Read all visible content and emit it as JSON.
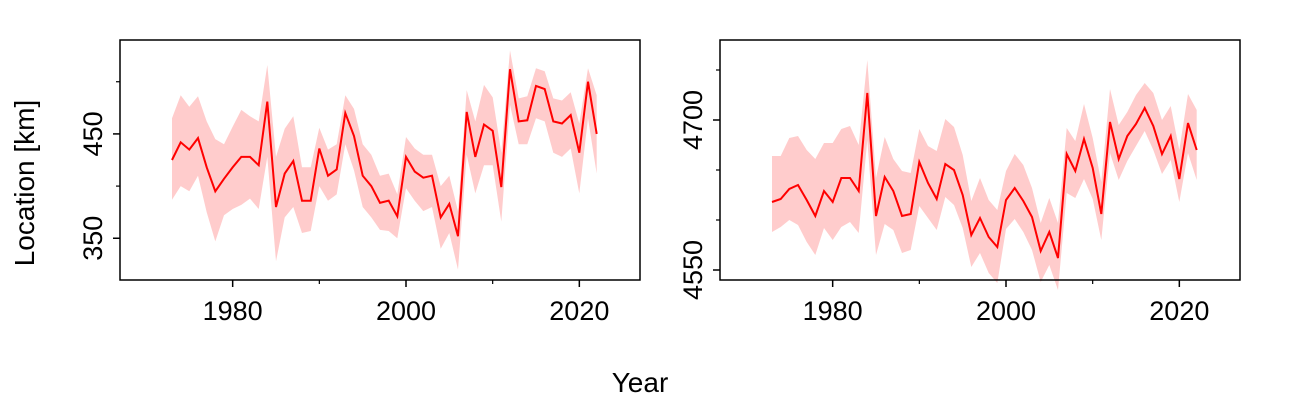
{
  "figure": {
    "ylabel": "Location [km]",
    "xlabel": "Year"
  },
  "chart_data": [
    {
      "type": "line",
      "title": "",
      "xlabel": "Year",
      "ylabel": "Location [km]",
      "xlim": [
        1967,
        2027
      ],
      "ylim": [
        310,
        540
      ],
      "xticks_major": [
        1980,
        2000,
        2020
      ],
      "xticks_minor": [
        1990,
        2010
      ],
      "yticks_major": [
        350,
        450
      ],
      "yticks_minor": [
        400,
        500
      ],
      "grid": false,
      "colors": {
        "line": "#ff0000",
        "band": "#ffcccc"
      },
      "series": [
        {
          "x": [
            1973,
            1974,
            1975,
            1976,
            1977,
            1978,
            1979,
            1980,
            1981,
            1982,
            1983,
            1984,
            1985,
            1986,
            1987,
            1988,
            1989,
            1990,
            1991,
            1992,
            1993,
            1994,
            1995,
            1996,
            1997,
            1998,
            1999,
            2000,
            2001,
            2002,
            2003,
            2004,
            2005,
            2006,
            2007,
            2008,
            2009,
            2010,
            2011,
            2012,
            2013,
            2014,
            2015,
            2016,
            2017,
            2018,
            2019,
            2020,
            2021,
            2022
          ],
          "y": [
            425,
            442,
            435,
            446,
            418,
            395,
            407,
            418,
            428,
            428,
            420,
            481,
            380,
            412,
            424,
            386,
            386,
            436,
            410,
            416,
            470,
            448,
            410,
            400,
            384,
            386,
            371,
            428,
            414,
            408,
            410,
            370,
            383,
            352,
            471,
            428,
            459,
            453,
            399,
            512,
            462,
            463,
            496,
            493,
            462,
            460,
            468,
            432,
            500,
            450
          ],
          "lower": [
            387,
            400,
            395,
            410,
            375,
            347,
            372,
            378,
            382,
            388,
            378,
            428,
            328,
            370,
            380,
            355,
            357,
            400,
            386,
            392,
            440,
            415,
            380,
            370,
            358,
            357,
            350,
            398,
            386,
            376,
            380,
            340,
            355,
            320,
            430,
            393,
            420,
            420,
            366,
            478,
            440,
            440,
            465,
            462,
            432,
            428,
            436,
            393,
            465,
            412
          ],
          "upper": [
            465,
            487,
            476,
            486,
            462,
            445,
            440,
            457,
            473,
            467,
            462,
            516,
            428,
            455,
            467,
            418,
            418,
            456,
            435,
            440,
            487,
            474,
            440,
            430,
            410,
            412,
            392,
            447,
            436,
            430,
            430,
            400,
            410,
            376,
            492,
            462,
            497,
            485,
            432,
            530,
            484,
            486,
            513,
            510,
            484,
            482,
            490,
            460,
            513,
            487
          ]
        }
      ]
    },
    {
      "type": "line",
      "title": "",
      "xlabel": "Year",
      "ylabel": "Location [km]",
      "xlim": [
        1967,
        2027
      ],
      "ylim": [
        4540,
        4780
      ],
      "xticks_major": [
        1980,
        2000,
        2020
      ],
      "xticks_minor": [
        1990,
        2010
      ],
      "yticks_major": [
        4550,
        4700
      ],
      "yticks_minor": [
        4600,
        4650,
        4750
      ],
      "grid": false,
      "colors": {
        "line": "#ff0000",
        "band": "#ffcccc"
      },
      "series": [
        {
          "x": [
            1973,
            1974,
            1975,
            1976,
            1977,
            1978,
            1979,
            1980,
            1981,
            1982,
            1983,
            1984,
            1985,
            1986,
            1987,
            1988,
            1989,
            1990,
            1991,
            1992,
            1993,
            1994,
            1995,
            1996,
            1997,
            1998,
            1999,
            2000,
            2001,
            2002,
            2003,
            2004,
            2005,
            2006,
            2007,
            2008,
            2009,
            2010,
            2011,
            2012,
            2013,
            2014,
            2015,
            2016,
            2017,
            2018,
            2019,
            2020,
            2021,
            2022
          ],
          "y": [
            4618,
            4621,
            4631,
            4635,
            4620,
            4604,
            4629,
            4618,
            4642,
            4642,
            4629,
            4727,
            4604,
            4643,
            4629,
            4604,
            4606,
            4658,
            4637,
            4621,
            4656,
            4650,
            4625,
            4585,
            4602,
            4583,
            4573,
            4620,
            4632,
            4619,
            4603,
            4569,
            4588,
            4562,
            4666,
            4649,
            4681,
            4652,
            4606,
            4698,
            4661,
            4684,
            4696,
            4712,
            4694,
            4666,
            4684,
            4641,
            4697,
            4670
          ],
          "lower": [
            4588,
            4593,
            4600,
            4595,
            4578,
            4565,
            4592,
            4580,
            4593,
            4598,
            4587,
            4680,
            4565,
            4596,
            4590,
            4567,
            4570,
            4614,
            4602,
            4590,
            4623,
            4615,
            4592,
            4553,
            4567,
            4547,
            4537,
            4591,
            4601,
            4588,
            4570,
            4538,
            4555,
            4530,
            4627,
            4622,
            4641,
            4621,
            4580,
            4667,
            4640,
            4659,
            4674,
            4689,
            4670,
            4646,
            4660,
            4618,
            4667,
            4640
          ],
          "upper": [
            4664,
            4664,
            4682,
            4684,
            4670,
            4661,
            4677,
            4677,
            4691,
            4694,
            4675,
            4760,
            4642,
            4683,
            4661,
            4649,
            4647,
            4691,
            4674,
            4669,
            4701,
            4693,
            4665,
            4619,
            4642,
            4620,
            4610,
            4649,
            4666,
            4655,
            4632,
            4597,
            4622,
            4597,
            4692,
            4679,
            4716,
            4682,
            4638,
            4731,
            4695,
            4708,
            4725,
            4737,
            4727,
            4700,
            4714,
            4670,
            4726,
            4710
          ]
        }
      ]
    }
  ]
}
